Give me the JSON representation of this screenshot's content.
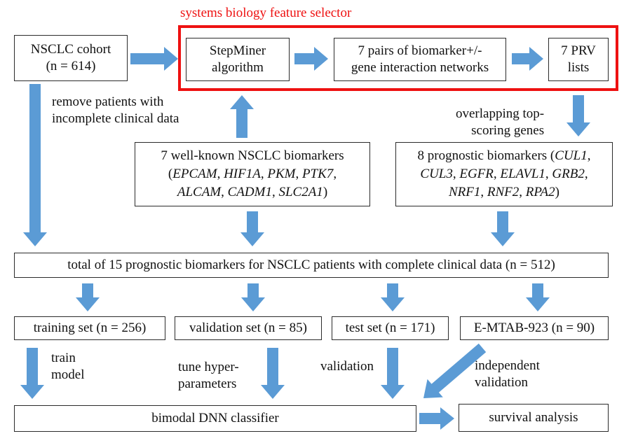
{
  "title": "systems biology feature selector",
  "colors": {
    "arrow": "#5b9bd5",
    "frame": "#ee1111",
    "border": "#2b2b2b"
  },
  "boxes": {
    "cohort": [
      "NSCLC cohort",
      "(n = 614)"
    ],
    "stepminer": [
      "StepMiner",
      "algorithm"
    ],
    "pairs": [
      "7 pairs of biomarker+/-",
      "gene interaction networks"
    ],
    "prv": [
      "7 PRV",
      "lists"
    ],
    "wellknown": {
      "line1": "7 well-known NSCLC biomarkers",
      "line2_genes": [
        "EPCAM",
        "HIF1A",
        "PKM",
        "PTK7"
      ],
      "line3_genes": [
        "ALCAM",
        "CADM1",
        "SLC2A1"
      ]
    },
    "prognostic": {
      "line1_prefix": "8 prognostic biomarkers (",
      "line1_gene": "CUL1",
      "line2_genes": [
        "CUL3",
        "EGFR",
        "ELAVL1",
        "GRB2"
      ],
      "line3_genes": [
        "NRF1",
        "RNF2",
        "RPA2"
      ]
    },
    "total": "total of 15 prognostic biomarkers for NSCLC patients with complete clinical data  (n = 512)",
    "training": "training set (n = 256)",
    "validation": "validation set (n = 85)",
    "test": "test set (n = 171)",
    "emtab": "E-MTAB-923 (n = 90)",
    "dnn": "bimodal DNN classifier",
    "survival": "survival analysis"
  },
  "labels": {
    "remove": [
      "remove patients with",
      "incomplete clinical data"
    ],
    "overlap": [
      "overlapping top-",
      "scoring genes"
    ],
    "train": [
      "train",
      "model"
    ],
    "tune": [
      "tune hyper-",
      "parameters"
    ],
    "validation": "validation",
    "independent": [
      "independent",
      "validation"
    ]
  }
}
